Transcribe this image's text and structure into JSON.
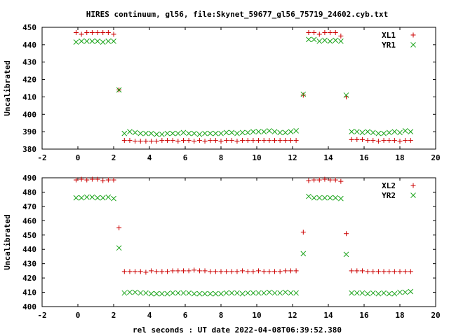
{
  "chart_data": {
    "type": "scatter",
    "title": "HIRES continuum, gl56, file:Skynet_59677_gl56_75719_24602.cyb.txt",
    "xlabel": "rel seconds : UT date 2022-04-08T06:39:52.380",
    "colors": {
      "red": "#cc0000",
      "green": "#1aa31a"
    },
    "panels": [
      {
        "ylabel": "Uncalibrated",
        "xlim": [
          -2,
          20
        ],
        "ylim": [
          380,
          450
        ],
        "xticks": [
          "-2",
          "0",
          "2",
          "4",
          "6",
          "8",
          "10",
          "12",
          "14",
          "16",
          "18",
          "20"
        ],
        "yticks": [
          "380",
          "390",
          "400",
          "410",
          "420",
          "430",
          "440",
          "450"
        ],
        "legend_position": "top-right",
        "series": [
          {
            "name": "XL1",
            "marker": "plus",
            "color": "#cc0000",
            "x": [
              -0.1,
              0.2,
              0.5,
              0.8,
              1.1,
              1.4,
              1.7,
              2.0,
              2.3,
              2.6,
              2.9,
              3.2,
              3.5,
              3.8,
              4.1,
              4.4,
              4.7,
              5.0,
              5.3,
              5.6,
              5.9,
              6.2,
              6.5,
              6.8,
              7.1,
              7.4,
              7.7,
              8.0,
              8.3,
              8.6,
              8.9,
              9.2,
              9.5,
              9.8,
              10.1,
              10.4,
              10.7,
              11.0,
              11.3,
              11.6,
              11.9,
              12.2,
              12.6,
              12.9,
              13.2,
              13.5,
              13.8,
              14.1,
              14.4,
              14.7,
              15.0,
              15.3,
              15.6,
              15.9,
              16.2,
              16.5,
              16.8,
              17.1,
              17.4,
              17.7,
              18.0,
              18.3,
              18.6
            ],
            "y": [
              447,
              446,
              447,
              447,
              447,
              447,
              447,
              446,
              414,
              385,
              385,
              384.5,
              384.5,
              384.5,
              384.5,
              384.5,
              385,
              385,
              385,
              384.5,
              385,
              385,
              384.5,
              385,
              384.5,
              385,
              385,
              384.5,
              385,
              385,
              384.5,
              385,
              385,
              385,
              385,
              385,
              385,
              385,
              385,
              385,
              385,
              385,
              411,
              447,
              447,
              446,
              447,
              447,
              447,
              445,
              410,
              385.5,
              385.5,
              385.5,
              385,
              385,
              384.5,
              385,
              385,
              385,
              384.5,
              385,
              385
            ]
          },
          {
            "name": "YR1",
            "marker": "cross",
            "color": "#1aa31a",
            "x": [
              -0.1,
              0.2,
              0.5,
              0.8,
              1.1,
              1.4,
              1.7,
              2.0,
              2.3,
              2.6,
              2.9,
              3.2,
              3.5,
              3.8,
              4.1,
              4.4,
              4.7,
              5.0,
              5.3,
              5.6,
              5.9,
              6.2,
              6.5,
              6.8,
              7.1,
              7.4,
              7.7,
              8.0,
              8.3,
              8.6,
              8.9,
              9.2,
              9.5,
              9.8,
              10.1,
              10.4,
              10.7,
              11.0,
              11.3,
              11.6,
              11.9,
              12.2,
              12.6,
              12.9,
              13.2,
              13.5,
              13.8,
              14.1,
              14.4,
              14.7,
              15.0,
              15.3,
              15.6,
              15.9,
              16.2,
              16.5,
              16.8,
              17.1,
              17.4,
              17.7,
              18.0,
              18.3,
              18.6
            ],
            "y": [
              441.5,
              442,
              442,
              442,
              442,
              441.5,
              442,
              442,
              414,
              389,
              390,
              389.5,
              389,
              389,
              389,
              388.5,
              388.5,
              389,
              389,
              389,
              389.5,
              389,
              389,
              388.5,
              389,
              389,
              389,
              389,
              389.5,
              389.5,
              389,
              389.5,
              389.5,
              390,
              390,
              390,
              390.5,
              390,
              389.5,
              389.5,
              390,
              390.5,
              411.5,
              443,
              443,
              442,
              442.5,
              442,
              442.5,
              442,
              411,
              390,
              390,
              389.5,
              390,
              389.5,
              389,
              389,
              389.5,
              390,
              389.5,
              390.5,
              390
            ]
          }
        ]
      },
      {
        "ylabel": "Uncalibrated",
        "xlim": [
          -2,
          20
        ],
        "ylim": [
          400,
          490
        ],
        "xticks": [
          "-2",
          "0",
          "2",
          "4",
          "6",
          "8",
          "10",
          "12",
          "14",
          "16",
          "18",
          "20"
        ],
        "yticks": [
          "400",
          "410",
          "420",
          "430",
          "440",
          "450",
          "460",
          "470",
          "480",
          "490"
        ],
        "legend_position": "top-right",
        "series": [
          {
            "name": "XL2",
            "marker": "plus",
            "color": "#cc0000",
            "x": [
              -0.1,
              0.2,
              0.5,
              0.8,
              1.1,
              1.4,
              1.7,
              2.0,
              2.3,
              2.6,
              2.9,
              3.2,
              3.5,
              3.8,
              4.1,
              4.4,
              4.7,
              5.0,
              5.3,
              5.6,
              5.9,
              6.2,
              6.5,
              6.8,
              7.1,
              7.4,
              7.7,
              8.0,
              8.3,
              8.6,
              8.9,
              9.2,
              9.5,
              9.8,
              10.1,
              10.4,
              10.7,
              11.0,
              11.3,
              11.6,
              11.9,
              12.2,
              12.6,
              12.9,
              13.2,
              13.5,
              13.8,
              14.1,
              14.4,
              14.7,
              15.0,
              15.3,
              15.6,
              15.9,
              16.2,
              16.5,
              16.8,
              17.1,
              17.4,
              17.7,
              18.0,
              18.3,
              18.6
            ],
            "y": [
              488.5,
              489,
              488.5,
              489,
              489,
              488,
              488.5,
              488.5,
              455,
              424.5,
              424.5,
              424.5,
              424.5,
              424,
              425,
              424.5,
              424.5,
              424.5,
              425,
              425,
              425,
              425,
              425.5,
              425,
              425,
              424.5,
              424.5,
              424.5,
              424.5,
              424.5,
              424.5,
              425,
              424.5,
              424.5,
              425,
              424.5,
              424.5,
              424.5,
              424.5,
              425,
              425,
              425,
              452,
              488,
              488.5,
              488.5,
              489,
              488.5,
              488.5,
              487.5,
              451,
              425,
              425,
              425,
              424.5,
              424.5,
              424.5,
              424.5,
              424.5,
              424.5,
              424.5,
              424.5,
              424.5
            ]
          },
          {
            "name": "YR2",
            "marker": "cross",
            "color": "#1aa31a",
            "x": [
              -0.1,
              0.2,
              0.5,
              0.8,
              1.1,
              1.4,
              1.7,
              2.0,
              2.3,
              2.6,
              2.9,
              3.2,
              3.5,
              3.8,
              4.1,
              4.4,
              4.7,
              5.0,
              5.3,
              5.6,
              5.9,
              6.2,
              6.5,
              6.8,
              7.1,
              7.4,
              7.7,
              8.0,
              8.3,
              8.6,
              8.9,
              9.2,
              9.5,
              9.8,
              10.1,
              10.4,
              10.7,
              11.0,
              11.3,
              11.6,
              11.9,
              12.2,
              12.6,
              12.9,
              13.2,
              13.5,
              13.8,
              14.1,
              14.4,
              14.7,
              15.0,
              15.3,
              15.6,
              15.9,
              16.2,
              16.5,
              16.8,
              17.1,
              17.4,
              17.7,
              18.0,
              18.3,
              18.6
            ],
            "y": [
              476,
              476,
              476.5,
              476.5,
              476,
              476,
              476.5,
              475.5,
              441,
              409.5,
              410,
              410,
              409.5,
              409.5,
              409,
              409,
              409,
              409,
              409.5,
              409.5,
              409.5,
              409.5,
              409,
              409,
              409,
              409,
              409,
              409,
              409.5,
              409.5,
              409.5,
              409,
              409.5,
              409.5,
              409.5,
              409.5,
              410,
              409.5,
              409.5,
              410,
              409.5,
              409.5,
              437,
              477,
              476,
              476,
              476,
              476,
              476,
              475.5,
              436.5,
              409.5,
              409.5,
              409.5,
              409,
              409.5,
              409,
              409.5,
              409,
              409,
              410,
              410,
              410.5
            ]
          }
        ]
      }
    ]
  }
}
